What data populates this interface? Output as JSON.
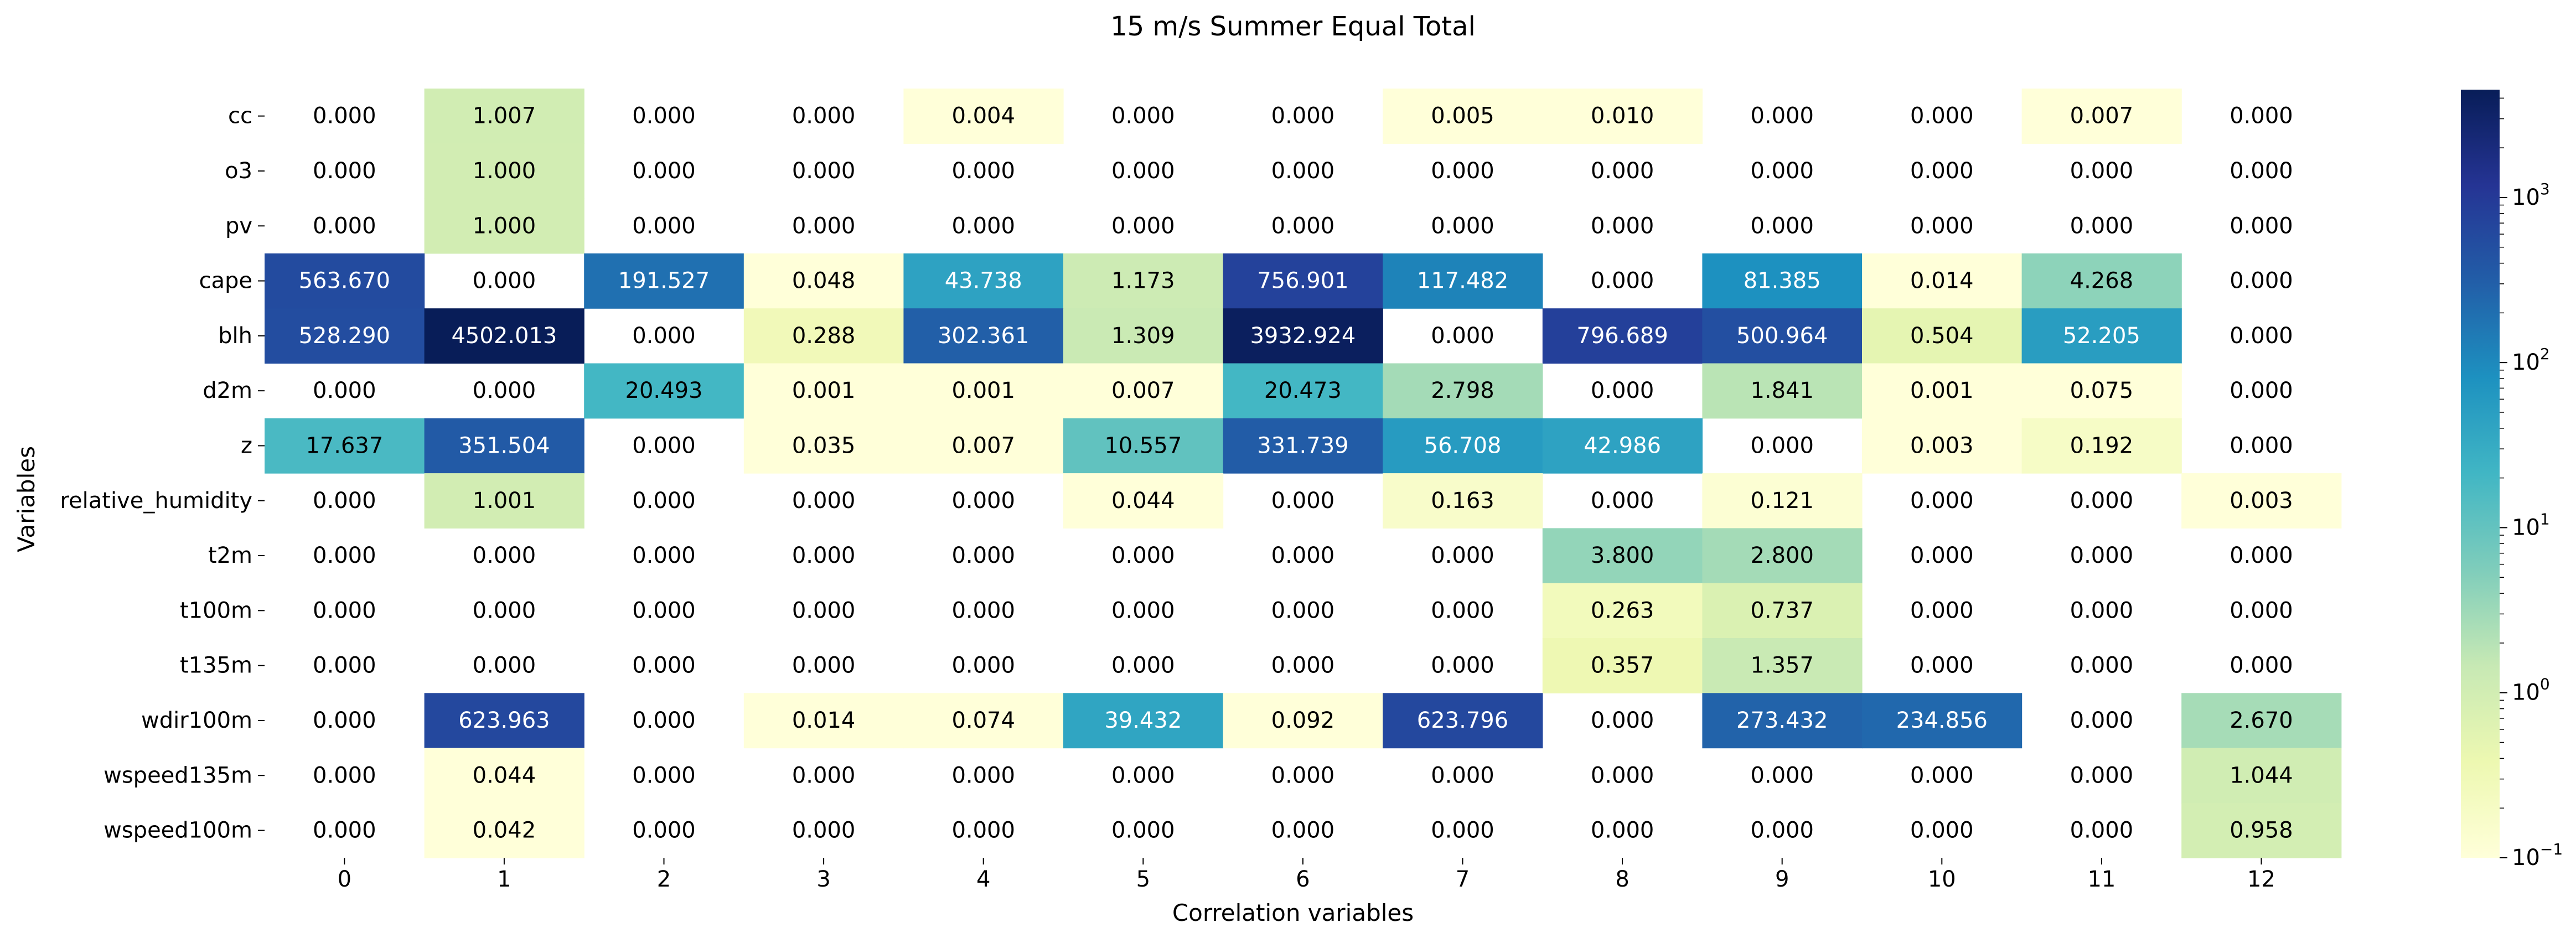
{
  "chart_data": {
    "type": "heatmap",
    "title": "15 m/s Summer Equal Total",
    "xlabel": "Correlation variables",
    "ylabel": "Variables",
    "colormap": "YlGnBu",
    "scale": "log",
    "color_range": [
      0.1,
      4502.013
    ],
    "colorbar_ticks": [
      {
        "value": 0.1,
        "base": "10",
        "exp": "−1"
      },
      {
        "value": 1,
        "base": "10",
        "exp": "0"
      },
      {
        "value": 10,
        "base": "10",
        "exp": "1"
      },
      {
        "value": 100,
        "base": "10",
        "exp": "2"
      },
      {
        "value": 1000,
        "base": "10",
        "exp": "3"
      }
    ],
    "columns": [
      "0",
      "1",
      "2",
      "3",
      "4",
      "5",
      "6",
      "7",
      "8",
      "9",
      "10",
      "11",
      "12"
    ],
    "rows": [
      "cc",
      "o3",
      "pv",
      "cape",
      "blh",
      "d2m",
      "z",
      "relative_humidity",
      "t2m",
      "t100m",
      "t135m",
      "wdir100m",
      "wspeed135m",
      "wspeed100m"
    ],
    "values": [
      [
        0.0,
        1.007,
        0.0,
        0.0,
        0.004,
        0.0,
        0.0,
        0.005,
        0.01,
        0.0,
        0.0,
        0.007,
        0.0
      ],
      [
        0.0,
        1.0,
        0.0,
        0.0,
        0.0,
        0.0,
        0.0,
        0.0,
        0.0,
        0.0,
        0.0,
        0.0,
        0.0
      ],
      [
        0.0,
        1.0,
        0.0,
        0.0,
        0.0,
        0.0,
        0.0,
        0.0,
        0.0,
        0.0,
        0.0,
        0.0,
        0.0
      ],
      [
        563.67,
        0.0,
        191.527,
        0.048,
        43.738,
        1.173,
        756.901,
        117.482,
        0.0,
        81.385,
        0.014,
        4.268,
        0.0
      ],
      [
        528.29,
        4502.013,
        0.0,
        0.288,
        302.361,
        1.309,
        3932.924,
        0.0,
        796.689,
        500.964,
        0.504,
        52.205,
        0.0
      ],
      [
        0.0,
        0.0,
        20.493,
        0.001,
        0.001,
        0.007,
        20.473,
        2.798,
        0.0,
        1.841,
        0.001,
        0.075,
        0.0
      ],
      [
        17.637,
        351.504,
        0.0,
        0.035,
        0.007,
        10.557,
        331.739,
        56.708,
        42.986,
        0.0,
        0.003,
        0.192,
        0.0
      ],
      [
        0.0,
        1.001,
        0.0,
        0.0,
        0.0,
        0.044,
        0.0,
        0.163,
        0.0,
        0.121,
        0.0,
        0.0,
        0.003
      ],
      [
        0.0,
        0.0,
        0.0,
        0.0,
        0.0,
        0.0,
        0.0,
        0.0,
        3.8,
        2.8,
        0.0,
        0.0,
        0.0
      ],
      [
        0.0,
        0.0,
        0.0,
        0.0,
        0.0,
        0.0,
        0.0,
        0.0,
        0.263,
        0.737,
        0.0,
        0.0,
        0.0
      ],
      [
        0.0,
        0.0,
        0.0,
        0.0,
        0.0,
        0.0,
        0.0,
        0.0,
        0.357,
        1.357,
        0.0,
        0.0,
        0.0
      ],
      [
        0.0,
        623.963,
        0.0,
        0.014,
        0.074,
        39.432,
        0.092,
        623.796,
        0.0,
        273.432,
        234.856,
        0.0,
        2.67
      ],
      [
        0.0,
        0.044,
        0.0,
        0.0,
        0.0,
        0.0,
        0.0,
        0.0,
        0.0,
        0.0,
        0.0,
        0.0,
        1.044
      ],
      [
        0.0,
        0.042,
        0.0,
        0.0,
        0.0,
        0.0,
        0.0,
        0.0,
        0.0,
        0.0,
        0.0,
        0.0,
        0.958
      ]
    ],
    "zero_cells_masked": true,
    "label_format": "3 decimals"
  }
}
